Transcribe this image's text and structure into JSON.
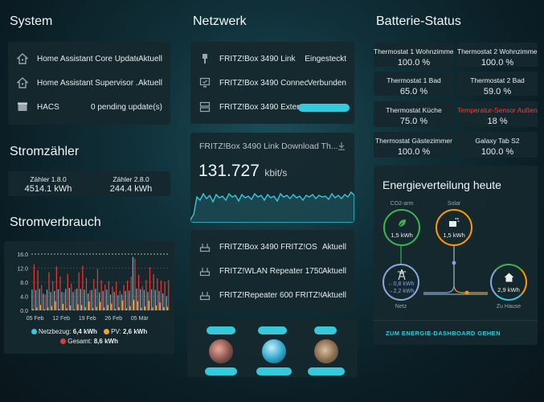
{
  "sections": {
    "system": "System",
    "netzwerk": "Netzwerk",
    "batterie": "Batterie-Status",
    "stromzaehler": "Stromzähler",
    "stromverbrauch": "Stromverbrauch"
  },
  "system": {
    "rows": [
      {
        "icon": "home-assistant-icon",
        "label": "Home Assistant Core Update",
        "value": "Aktuell"
      },
      {
        "icon": "home-assistant-icon",
        "label": "Home Assistant Supervisor ...",
        "value": "Aktuell"
      },
      {
        "icon": "hacs-icon",
        "label": "HACS",
        "value": "0 pending update(s)"
      }
    ]
  },
  "netzwerk": {
    "rows": [
      {
        "icon": "ethernet-plug-icon",
        "label": "FRITZ!Box 3490 Link",
        "value": "Eingesteckt"
      },
      {
        "icon": "monitor-check-icon",
        "label": "FRITZ!Box 3490 Connect...",
        "value": "Verbunden"
      },
      {
        "icon": "server-icon",
        "label": "FRITZ!Box 3490 Exter...",
        "value": ""
      }
    ],
    "download": {
      "title": "FRITZ!Box 3490 Link Download Th...",
      "value": "131.727",
      "unit": "kbit/s",
      "color": "#35c9dc"
    },
    "updates": [
      {
        "icon": "router-icon",
        "label": "FRITZ!Box 3490 FRITZ!OS",
        "value": "Aktuell"
      },
      {
        "icon": "router-icon",
        "label": "FRITZ!WLAN Repeater 1750...",
        "value": "Aktuell"
      },
      {
        "icon": "router-icon",
        "label": "FRITZ!Repeater 600 FRITZ!OS",
        "value": "Aktuell"
      }
    ]
  },
  "batterie": {
    "tiles": [
      {
        "name": "Thermostat 1 Wohnzimmer",
        "value": "100.0 %"
      },
      {
        "name": "Thermostat 2 Wohnzimmer",
        "value": "100.0 %"
      },
      {
        "name": "Thermostat 1 Bad",
        "value": "65.0 %"
      },
      {
        "name": "Thermostat 2 Bad",
        "value": "59.0 %"
      },
      {
        "name": "Thermostat Küche",
        "value": "75.0 %"
      },
      {
        "name": "Temperatur-Sensor Außen",
        "value": "18 %",
        "alert": true
      },
      {
        "name": "Thermostat Gästezimmer",
        "value": "100.0 %"
      },
      {
        "name": "Galaxy Tab S2",
        "value": "100.0 %"
      }
    ],
    "alert_color": "#ff3b30"
  },
  "stromzaehler": {
    "meters": [
      {
        "name": "Zähler 1.8.0",
        "value": "4514.1 kWh"
      },
      {
        "name": "Zähler 2.8.0",
        "value": "244.4 kWh"
      }
    ]
  },
  "energie": {
    "title": "Energieverteilung heute",
    "co2_label": "CO2-arm",
    "co2_value": "1,5 kWh",
    "solar_label": "Solar",
    "solar_value": "1,5 kWh",
    "grid_in": "←0,8 kWh",
    "grid_out": "→2,2 kWh",
    "grid_label": "Netz",
    "home_value": "2,9 kWh",
    "home_label": "Zu Hause",
    "dashboard_link": "ZUM ENERGIE-DASHBOARD GEHEN",
    "colors": {
      "co2": "#3fb34f",
      "solar": "#ff9800",
      "grid": "#8aa6d8",
      "home": "#35c9dc"
    }
  },
  "chart_data": {
    "type": "bar",
    "xticks": [
      "05 Feb",
      "12 Feb",
      "19 Feb",
      "26 Feb",
      "05 Mär"
    ],
    "yticks": [
      "0.0",
      "4.0",
      "8.0",
      "12.0",
      "16.0"
    ],
    "ylim": [
      0,
      16
    ],
    "series": [
      {
        "name": "Netzbezug",
        "color": "#35c9dc",
        "values": [
          5.9,
          5.8,
          6.1,
          4.7,
          5.9,
          5.2,
          5.5,
          6.0,
          5.2,
          6.1,
          6.4,
          5.2,
          6.2,
          6.1,
          5.9,
          4.8,
          5.8,
          6.1,
          5.1,
          5.5,
          5.9,
          4.5,
          5.2,
          4.3,
          4.5,
          5.5,
          5.6,
          15.2,
          6.2,
          6.0,
          5.8,
          5.2,
          6.0,
          5.8,
          5.5,
          4.8,
          4.0
        ]
      },
      {
        "name": "PV",
        "color": "#f5a623",
        "values": [
          0.4,
          0.8,
          1.5,
          0.3,
          0.8,
          1.2,
          2.6,
          0.4,
          1.8,
          0.6,
          1.4,
          0.3,
          1.7,
          1.5,
          0.9,
          2.5,
          0.6,
          1.0,
          2.4,
          0.8,
          1.5,
          1.9,
          0.4,
          0.9,
          2.8,
          0.6,
          1.2,
          3.0,
          2.6,
          0.7,
          1.1,
          2.7,
          0.8,
          1.4,
          2.2,
          0.9,
          1.0
        ]
      },
      {
        "name": "Gesamt",
        "color": "#e53935",
        "values": [
          13.1,
          11.4,
          7.2,
          4.5,
          10.8,
          8.3,
          12.5,
          9.6,
          5.1,
          10.4,
          7.6,
          5.9,
          10.8,
          12.7,
          9.2,
          5.7,
          8.9,
          11.8,
          8.6,
          7.3,
          8.3,
          6.8,
          8.1,
          5.6,
          7.2,
          8.5,
          9.6,
          14.7,
          10.1,
          6.8,
          8.7,
          12.2,
          10.3,
          9.1,
          8.5,
          8.2,
          8.6
        ]
      }
    ],
    "legend": [
      {
        "label": "Netzbezug:",
        "value": "6,4 kWh",
        "color": "#35c9dc"
      },
      {
        "label": "PV:",
        "value": "2,6 kWh",
        "color": "#f5a623"
      },
      {
        "label": "Gesamt:",
        "value": "8,6 kWh",
        "color": "#e53935"
      }
    ]
  }
}
